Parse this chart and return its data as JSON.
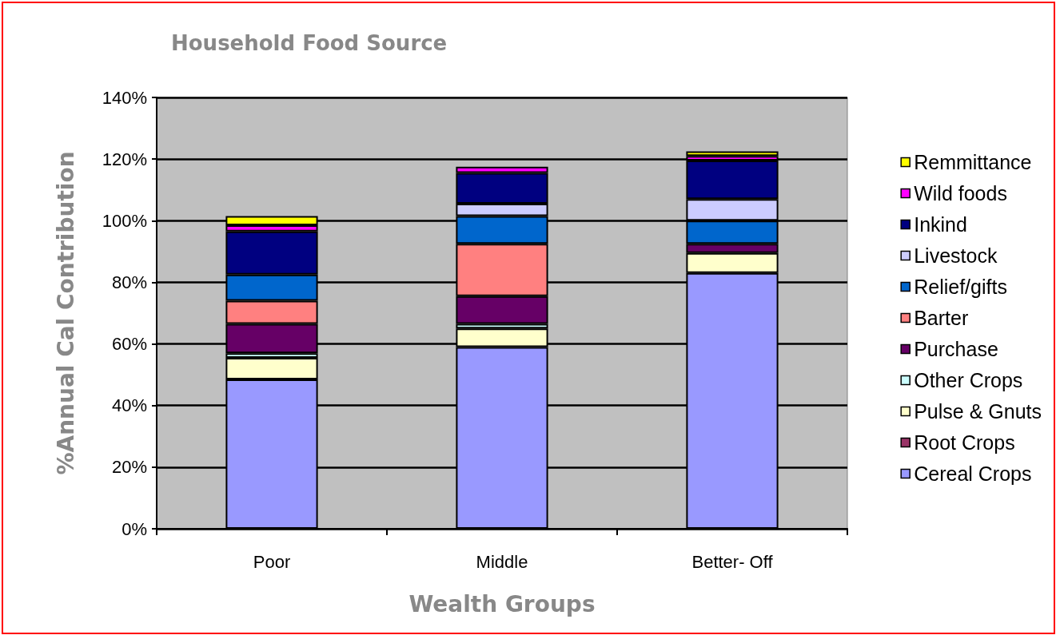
{
  "chart_data": {
    "type": "bar",
    "title": "Household Food Source",
    "xlabel": "Wealth Groups",
    "ylabel": "%Annual Cal Contribution",
    "categories": [
      "Poor",
      "Middle",
      "Better- Off"
    ],
    "stacked": true,
    "grid": "y",
    "legend": "right",
    "ylim": [
      0,
      140
    ],
    "yticks": [
      {
        "value": 0,
        "label": "0%"
      },
      {
        "value": 20,
        "label": "20%"
      },
      {
        "value": 40,
        "label": "40%"
      },
      {
        "value": 60,
        "label": "60%"
      },
      {
        "value": 80,
        "label": "80%"
      },
      {
        "value": 100,
        "label": "100%"
      },
      {
        "value": 120,
        "label": "120%"
      },
      {
        "value": 140,
        "label": "140%"
      }
    ],
    "series": [
      {
        "name": "Cereal Crops",
        "color": "#9999ff",
        "values": [
          48.5,
          59,
          83
        ]
      },
      {
        "name": "Root Crops",
        "color": "#993366",
        "values": [
          0,
          0,
          0
        ]
      },
      {
        "name": "Pulse & Gnuts",
        "color": "#ffffcc",
        "values": [
          7,
          6,
          6.5
        ]
      },
      {
        "name": "Other Crops",
        "color": "#ccffff",
        "values": [
          1.5,
          1.5,
          0
        ]
      },
      {
        "name": "Purchase",
        "color": "#660066",
        "values": [
          9.5,
          9,
          3
        ]
      },
      {
        "name": "Barter",
        "color": "#ff8080",
        "values": [
          7.5,
          17,
          0
        ]
      },
      {
        "name": "Relief/gifts",
        "color": "#0066cc",
        "values": [
          8.5,
          9,
          7.5
        ]
      },
      {
        "name": "Livestock",
        "color": "#ccccff",
        "values": [
          0,
          4,
          7
        ]
      },
      {
        "name": "Inkind",
        "color": "#000080",
        "values": [
          14,
          10,
          12.5
        ]
      },
      {
        "name": "Wild foods",
        "color": "#ff00ff",
        "values": [
          2,
          2,
          1.5
        ]
      },
      {
        "name": "Remmittance",
        "color": "#ffff00",
        "values": [
          3,
          0,
          1.5
        ]
      }
    ]
  }
}
